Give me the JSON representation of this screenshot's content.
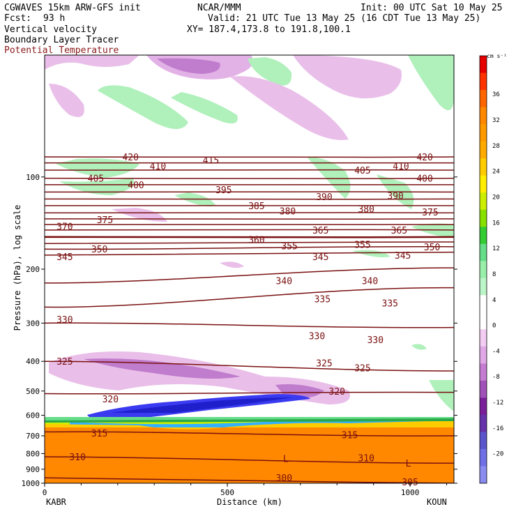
{
  "header": {
    "model": "CGWAVES 15km ARW-GFS init",
    "fcst_label": "Fcst:",
    "fcst_value": "93 h",
    "org": "NCAR/MMM",
    "init": "Init: 00 UTC Sat 10 May 25",
    "valid": "Valid: 21 UTC Tue 13 May 25 (16 CDT Tue 13 May 25)",
    "xy": "XY= 187.4,173.8 to 191.8,100.1",
    "fields": [
      {
        "label": "Vertical velocity",
        "color": "#000000"
      },
      {
        "label": "Boundary Layer Tracer",
        "color": "#000000"
      },
      {
        "label": "Potential Temperature",
        "color": "#8b1a1a"
      }
    ]
  },
  "chart_data": {
    "type": "heatmap",
    "xlabel": "Distance (km)",
    "ylabel": "Pressure (hPa), log scale",
    "x_ticks": [
      "0",
      "500",
      "1000"
    ],
    "x_tick_values": [
      0,
      500,
      1000
    ],
    "xlim": [
      0,
      1120
    ],
    "y_ticks": [
      "100",
      "200",
      "300",
      "400",
      "500",
      "600",
      "700",
      "800",
      "900",
      "1000"
    ],
    "y_tick_values": [
      100,
      200,
      300,
      400,
      500,
      600,
      700,
      800,
      900,
      1000
    ],
    "ylim": [
      1000,
      40
    ],
    "y_scale": "log",
    "endpoints": {
      "left": "KABR",
      "right": "KOUN"
    },
    "colorbar": {
      "units": "cm s⁻¹",
      "labels": [
        "36",
        "32",
        "28",
        "24",
        "20",
        "16",
        "12",
        "8",
        "4",
        "0",
        "-4",
        "-8",
        "-12",
        "-16",
        "-20"
      ],
      "colors": [
        "#e60000",
        "#ff3300",
        "#ff6600",
        "#ff8800",
        "#ff9900",
        "#ffaa00",
        "#ffcc00",
        "#ffee00",
        "#ccee00",
        "#88e000",
        "#33cc33",
        "#66dd88",
        "#99eeaa",
        "#bbf5c8",
        "#ffffff",
        "#ffffff",
        "#f2ccf2",
        "#e0a8e6",
        "#c47cd0",
        "#a052b8",
        "#7a1f9a",
        "#6633aa",
        "#5a55cc",
        "#6f70e6",
        "#8a8cf0"
      ]
    },
    "theta_contours": [
      {
        "label": "420",
        "p_left": 86,
        "p_right": 86
      },
      {
        "label": "415",
        "p_left": 90,
        "p_right": 90
      },
      {
        "label": "410",
        "p_left": 95,
        "p_right": 95
      },
      {
        "label": "405",
        "p_left": 101,
        "p_right": 101
      },
      {
        "label": "400",
        "p_left": 106,
        "p_right": 106
      },
      {
        "label": "395",
        "p_left": 112,
        "p_right": 112
      },
      {
        "label": "390",
        "p_left": 118,
        "p_right": 118
      },
      {
        "label": "385",
        "p_left": 124,
        "p_right": 124
      },
      {
        "label": "380",
        "p_left": 131,
        "p_right": 131
      },
      {
        "label": "375",
        "p_left": 137,
        "p_right": 137
      },
      {
        "label": "370",
        "p_left": 143,
        "p_right": 143
      },
      {
        "label": "365",
        "p_left": 149,
        "p_right": 149
      },
      {
        "label": "360",
        "p_left": 157,
        "p_right": 157
      },
      {
        "label": "355",
        "p_left": 165,
        "p_right": 163
      },
      {
        "label": "350",
        "p_left": 172,
        "p_right": 169
      },
      {
        "label": "345",
        "p_left": 180,
        "p_right": 176
      },
      {
        "label": "340",
        "p_left": 222,
        "p_right": 198
      },
      {
        "label": "335",
        "p_left": 266,
        "p_right": 230
      },
      {
        "label": "330",
        "p_left": 300,
        "p_right": 310
      },
      {
        "label": "325",
        "p_left": 400,
        "p_right": 430
      },
      {
        "label": "320",
        "p_left": 510,
        "p_right": 505
      },
      {
        "label": "315",
        "p_left": 680,
        "p_right": 700
      },
      {
        "label": "310",
        "p_left": 820,
        "p_right": 860
      },
      {
        "label": "305",
        "p_left": 960,
        "p_right": 1000
      }
    ],
    "theta_labels": [
      {
        "text": "420",
        "x": 235,
        "p": 86
      },
      {
        "text": "415",
        "x": 455,
        "p": 88
      },
      {
        "text": "420",
        "x": 1040,
        "p": 86
      },
      {
        "text": "410",
        "x": 310,
        "p": 92
      },
      {
        "text": "410",
        "x": 975,
        "p": 92
      },
      {
        "text": "405",
        "x": 140,
        "p": 101
      },
      {
        "text": "405",
        "x": 870,
        "p": 95
      },
      {
        "text": "400",
        "x": 250,
        "p": 106
      },
      {
        "text": "400",
        "x": 1040,
        "p": 101
      },
      {
        "text": "395",
        "x": 490,
        "p": 110
      },
      {
        "text": "390",
        "x": 765,
        "p": 116
      },
      {
        "text": "390",
        "x": 960,
        "p": 115
      },
      {
        "text": "385",
        "x": 580,
        "p": 124
      },
      {
        "text": "380",
        "x": 665,
        "p": 129
      },
      {
        "text": "380",
        "x": 880,
        "p": 127
      },
      {
        "text": "375",
        "x": 165,
        "p": 138
      },
      {
        "text": "375",
        "x": 1055,
        "p": 130
      },
      {
        "text": "370",
        "x": 55,
        "p": 145
      },
      {
        "text": "365",
        "x": 755,
        "p": 149
      },
      {
        "text": "365",
        "x": 970,
        "p": 149
      },
      {
        "text": "360",
        "x": 580,
        "p": 160
      },
      {
        "text": "355",
        "x": 670,
        "p": 168
      },
      {
        "text": "355",
        "x": 870,
        "p": 166
      },
      {
        "text": "350",
        "x": 150,
        "p": 172
      },
      {
        "text": "350",
        "x": 1060,
        "p": 169
      },
      {
        "text": "345",
        "x": 55,
        "p": 182
      },
      {
        "text": "345",
        "x": 755,
        "p": 182
      },
      {
        "text": "345",
        "x": 980,
        "p": 180
      },
      {
        "text": "340",
        "x": 655,
        "p": 218
      },
      {
        "text": "340",
        "x": 890,
        "p": 218
      },
      {
        "text": "335",
        "x": 760,
        "p": 250
      },
      {
        "text": "335",
        "x": 945,
        "p": 258
      },
      {
        "text": "330",
        "x": 55,
        "p": 292
      },
      {
        "text": "330",
        "x": 745,
        "p": 330
      },
      {
        "text": "330",
        "x": 905,
        "p": 340
      },
      {
        "text": "325",
        "x": 55,
        "p": 400
      },
      {
        "text": "325",
        "x": 765,
        "p": 405
      },
      {
        "text": "325",
        "x": 870,
        "p": 420
      },
      {
        "text": "320",
        "x": 180,
        "p": 530
      },
      {
        "text": "320",
        "x": 800,
        "p": 500
      },
      {
        "text": "315",
        "x": 150,
        "p": 685
      },
      {
        "text": "315",
        "x": 835,
        "p": 695
      },
      {
        "text": "310",
        "x": 90,
        "p": 820
      },
      {
        "text": "310",
        "x": 880,
        "p": 825
      },
      {
        "text": "L",
        "x": 660,
        "p": 830
      },
      {
        "text": "L",
        "x": 995,
        "p": 860
      },
      {
        "text": "300",
        "x": 655,
        "p": 960
      },
      {
        "text": "305",
        "x": 1000,
        "p": 990
      }
    ]
  }
}
